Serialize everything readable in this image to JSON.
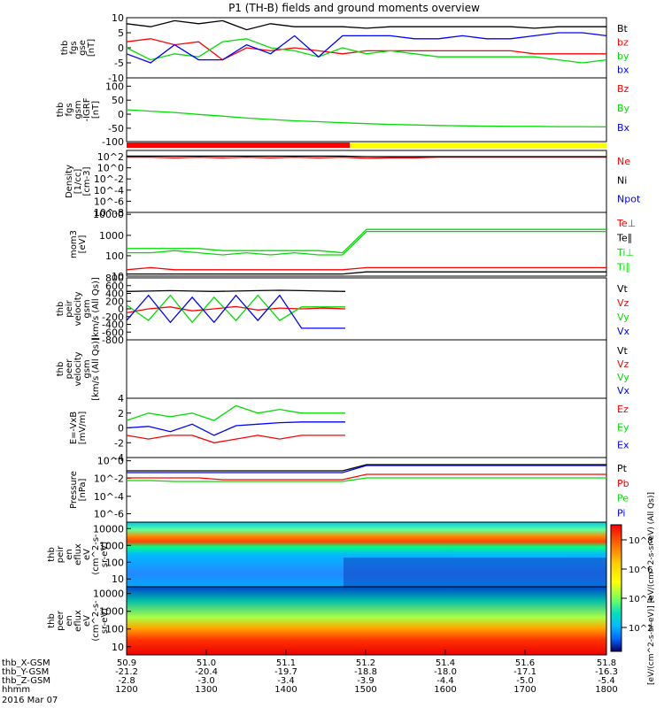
{
  "title": "P1 (TH-B) fields and ground moments overview",
  "colors": {
    "black": "#000000",
    "red": "#ff0000",
    "green": "#00dd00",
    "blue": "#0000ff",
    "yellow": "#ffff00"
  },
  "chart_data": [
    {
      "type": "line",
      "ylabel": [
        "thb",
        "fgs",
        "gse",
        "[nT]"
      ],
      "yticks": [
        "10",
        "5",
        "0",
        "-5",
        "-10"
      ],
      "ylim": [
        -10,
        10
      ],
      "legend": [
        {
          "name": "Bt",
          "color": "#000000"
        },
        {
          "name": "bz",
          "color": "#ff0000"
        },
        {
          "name": "by",
          "color": "#00dd00"
        },
        {
          "name": "bx",
          "color": "#0000ff"
        }
      ],
      "series": [
        {
          "name": "Bt",
          "values": [
            8,
            7,
            9,
            8,
            9,
            6,
            8,
            7,
            7,
            7,
            6.5,
            7,
            7,
            7,
            7,
            7,
            7,
            6.5,
            7,
            7,
            7
          ]
        },
        {
          "name": "bz",
          "values": [
            2,
            3,
            1,
            2,
            -4,
            0,
            -1,
            0,
            -1,
            -2,
            -1,
            -1,
            -1,
            -1,
            -1,
            -1,
            -1,
            -2,
            -2,
            -2,
            -2
          ]
        },
        {
          "name": "by",
          "values": [
            0,
            -4,
            -2,
            -3,
            2,
            3,
            0,
            -1,
            -3,
            0,
            -2,
            -1,
            -2,
            -3,
            -3,
            -3,
            -3,
            -3,
            -4,
            -5,
            -4
          ]
        },
        {
          "name": "bx",
          "values": [
            -2,
            -5,
            1,
            -4,
            -4,
            1,
            -2,
            4,
            -3,
            4,
            4,
            4,
            3,
            3,
            4,
            3,
            3,
            4,
            5,
            5,
            4
          ]
        }
      ]
    },
    {
      "type": "line",
      "ylabel": [
        "thb",
        "fgs",
        "gsm",
        "-IGRF",
        "[nT]"
      ],
      "yticks": [
        "100",
        "50",
        "0",
        "-50",
        "-100"
      ],
      "ylim": [
        -130,
        100
      ],
      "legend": [
        {
          "name": "Bz",
          "color": "#ff0000"
        },
        {
          "name": "By",
          "color": "#00dd00"
        },
        {
          "name": "Bx",
          "color": "#0000ff"
        }
      ],
      "series": [
        {
          "name": "By",
          "values": [
            -15,
            -20,
            -25,
            -32,
            -38,
            -45,
            -50,
            -55,
            -58,
            -62,
            -65,
            -68,
            -70,
            -72,
            -73,
            -74,
            -75,
            -75,
            -76,
            -76,
            -77
          ]
        }
      ]
    },
    {
      "type": "line",
      "ylabel": [
        "Density",
        "[1/cc]",
        "[cm-3]"
      ],
      "yticks": [
        "10^2",
        "10^0",
        "10^-2",
        "10^-4",
        "10^-6",
        "10^-8"
      ],
      "ylim_log": [
        -9,
        2
      ],
      "legend": [
        {
          "name": "Ne",
          "color": "#ff0000"
        },
        {
          "name": "Ni",
          "color": "#000000"
        },
        {
          "name": "Npot",
          "color": "#0000ff"
        }
      ],
      "series": [
        {
          "name": "Ne",
          "log_values": [
            0.8,
            0.8,
            0.7,
            0.8,
            0.7,
            0.8,
            0.7,
            0.8,
            0.7,
            0.8,
            0.6,
            0.7,
            0.7,
            0.8,
            0.8,
            0.8,
            0.8,
            0.8,
            0.8,
            0.8,
            0.8
          ]
        },
        {
          "name": "Ni",
          "log_values": [
            1,
            1,
            1,
            1,
            1,
            1,
            1,
            1,
            1,
            1,
            0.9,
            0.9,
            0.9,
            0.9,
            0.9,
            0.9,
            0.9,
            0.9,
            0.9,
            0.9,
            0.9
          ]
        }
      ]
    },
    {
      "type": "line",
      "ylabel": [
        "mom3",
        "[eV]"
      ],
      "yticks": [
        "10000",
        "1000",
        "100",
        "10"
      ],
      "ylim_log": [
        1,
        4
      ],
      "legend": [
        {
          "name": "Te⊥",
          "color": "#ff0000"
        },
        {
          "name": "Te∥",
          "color": "#000000"
        },
        {
          "name": "Ti⊥",
          "color": "#00dd00"
        },
        {
          "name": "Ti∥",
          "color": "#00dd00"
        }
      ],
      "series": [
        {
          "name": "Ti∥",
          "log_values": [
            2.1,
            2.1,
            2.2,
            2.1,
            2.0,
            2.1,
            2.0,
            2.1,
            2.0,
            2.0,
            3.1,
            3.1,
            3.1,
            3.1,
            3.1,
            3.1,
            3.1,
            3.1,
            3.1,
            3.1,
            3.1
          ]
        },
        {
          "name": "Ti⊥",
          "log_values": [
            2.3,
            2.3,
            2.3,
            2.3,
            2.2,
            2.2,
            2.2,
            2.2,
            2.2,
            2.1,
            3.2,
            3.2,
            3.2,
            3.2,
            3.2,
            3.2,
            3.2,
            3.2,
            3.2,
            3.2,
            3.2
          ]
        },
        {
          "name": "Te⊥",
          "log_values": [
            1.3,
            1.4,
            1.3,
            1.3,
            1.3,
            1.3,
            1.3,
            1.3,
            1.3,
            1.3,
            1.4,
            1.4,
            1.4,
            1.4,
            1.4,
            1.4,
            1.4,
            1.4,
            1.4,
            1.4,
            1.4
          ]
        },
        {
          "name": "Te∥",
          "log_values": [
            1.1,
            1.1,
            1.1,
            1.1,
            1.1,
            1.1,
            1.1,
            1.1,
            1.1,
            1.1,
            1.2,
            1.2,
            1.2,
            1.2,
            1.2,
            1.2,
            1.2,
            1.2,
            1.2,
            1.2,
            1.2
          ]
        }
      ]
    },
    {
      "type": "line",
      "ylabel": [
        "thb",
        "peir",
        "velocity",
        "gsm",
        "[km/s (All Qs)]"
      ],
      "yticks": [
        "800",
        "600",
        "400",
        "200",
        "0",
        "-200",
        "-400",
        "-600",
        "-800"
      ],
      "ylim": [
        -800,
        800
      ],
      "legend": [
        {
          "name": "Vt",
          "color": "#000000"
        },
        {
          "name": "Vz",
          "color": "#ff0000"
        },
        {
          "name": "Vy",
          "color": "#00dd00"
        },
        {
          "name": "Vx",
          "color": "#0000ff"
        }
      ],
      "series": [
        {
          "name": "Vt",
          "values": [
            450,
            460,
            470,
            460,
            450,
            460,
            470,
            480,
            470,
            460,
            450
          ]
        },
        {
          "name": "Vz",
          "values": [
            -100,
            0,
            50,
            -50,
            0,
            60,
            -30,
            20,
            0,
            20,
            0
          ]
        },
        {
          "name": "Vy",
          "values": [
            100,
            -300,
            350,
            -350,
            300,
            -300,
            350,
            -300,
            50,
            50,
            50
          ]
        },
        {
          "name": "Vx",
          "values": [
            -300,
            350,
            -350,
            300,
            -350,
            350,
            -300,
            350,
            -500,
            -500,
            -500
          ]
        }
      ]
    },
    {
      "type": "line",
      "ylabel": [
        "thb",
        "peer",
        "velocity",
        "gsm",
        "[km/s (All Qs)]"
      ],
      "yticks": [],
      "legend": [
        {
          "name": "Vt",
          "color": "#000000"
        },
        {
          "name": "Vz",
          "color": "#ff0000"
        },
        {
          "name": "Vy",
          "color": "#00dd00"
        },
        {
          "name": "Vx",
          "color": "#0000ff"
        }
      ],
      "series": []
    },
    {
      "type": "line",
      "ylabel": [
        "E=-VxB",
        "[mV/m]"
      ],
      "yticks": [
        "4",
        "2",
        "0",
        "-2",
        "-4"
      ],
      "ylim": [
        -4,
        4
      ],
      "legend": [
        {
          "name": "Ez",
          "color": "#ff0000"
        },
        {
          "name": "Ey",
          "color": "#00dd00"
        },
        {
          "name": "Ex",
          "color": "#0000ff"
        }
      ],
      "series": [
        {
          "name": "Ey",
          "values": [
            1,
            2,
            1.5,
            2,
            1,
            3,
            2,
            2.5,
            2,
            2,
            2
          ]
        },
        {
          "name": "Ez",
          "values": [
            -1,
            -1.5,
            -1,
            -1,
            -2,
            -1.5,
            -1,
            -1.5,
            -1,
            -1,
            -1
          ]
        },
        {
          "name": "Ex",
          "values": [
            0,
            0.2,
            -0.5,
            0.5,
            -1,
            0.3,
            0.5,
            0.7,
            0.8,
            0.8,
            0.8
          ]
        }
      ]
    },
    {
      "type": "line",
      "ylabel": [
        "Pressure",
        "[nPa]"
      ],
      "yticks": [
        "10^0",
        "10^-2",
        "10^-4",
        "10^-6"
      ],
      "ylim_log": [
        -7,
        0.3
      ],
      "legend": [
        {
          "name": "Pt",
          "color": "#000000"
        },
        {
          "name": "Pb",
          "color": "#ff0000"
        },
        {
          "name": "Pe",
          "color": "#00dd00"
        },
        {
          "name": "Pi",
          "color": "#0000ff"
        }
      ],
      "series": [
        {
          "name": "Pt",
          "log_values": [
            -1.2,
            -1.2,
            -1.2,
            -1.2,
            -1.2,
            -1.2,
            -1.2,
            -1.2,
            -1.2,
            -1.2,
            -0.5,
            -0.5,
            -0.5,
            -0.5,
            -0.5,
            -0.5,
            -0.5,
            -0.5,
            -0.5,
            -0.5,
            -0.5
          ]
        },
        {
          "name": "Pi",
          "log_values": [
            -1.4,
            -1.4,
            -1.4,
            -1.4,
            -1.4,
            -1.4,
            -1.4,
            -1.4,
            -1.4,
            -1.4,
            -0.6,
            -0.6,
            -0.6,
            -0.6,
            -0.6,
            -0.6,
            -0.6,
            -0.6,
            -0.6,
            -0.6,
            -0.6
          ]
        },
        {
          "name": "Pb",
          "log_values": [
            -2,
            -2,
            -2,
            -2,
            -2.2,
            -2.2,
            -2.2,
            -2.2,
            -2.2,
            -2.2,
            -1.6,
            -1.6,
            -1.6,
            -1.6,
            -1.6,
            -1.6,
            -1.6,
            -1.6,
            -1.6,
            -1.6,
            -1.6
          ]
        },
        {
          "name": "Pe",
          "log_values": [
            -2.3,
            -2.3,
            -2.4,
            -2.4,
            -2.4,
            -2.4,
            -2.4,
            -2.4,
            -2.4,
            -2.4,
            -2.0,
            -2.0,
            -2.0,
            -2.0,
            -2.0,
            -2.0,
            -2.0,
            -2.0,
            -2.0,
            -2.0,
            -2.0
          ]
        }
      ]
    },
    {
      "type": "heatmap",
      "ylabel": [
        "thb",
        "peir",
        "en",
        "eflux",
        "eV",
        "(cm^2-s-",
        "sr-eV)"
      ],
      "yticks": [
        "10000",
        "1000",
        "100",
        "10"
      ]
    },
    {
      "type": "heatmap",
      "ylabel": [
        "thb",
        "peer",
        "en",
        "eflux",
        "eV",
        "(cm^2-s-",
        "sr-eV)"
      ],
      "yticks": [
        "10000",
        "1000",
        "100",
        "10"
      ]
    }
  ],
  "colorbar": {
    "label": "[eV/(cm^2-s-sr-eV)] [eV/(cm^2-s-sr-eV) (All Qs)]",
    "ticks": [
      "10^8",
      "10^6",
      "10^4",
      "10^2"
    ]
  },
  "time_axis": {
    "rows": [
      {
        "label": "thb_X-GSM",
        "values": [
          "50.9",
          "51.0",
          "51.1",
          "51.2",
          "51.4",
          "51.6",
          "51.8"
        ]
      },
      {
        "label": "thb_Y-GSM",
        "values": [
          "-21.2",
          "-20.4",
          "-19.7",
          "-18.8",
          "-18.0",
          "-17.1",
          "-16.3"
        ]
      },
      {
        "label": "thb_Z-GSM",
        "values": [
          "-2.8",
          "-3.0",
          "-3.4",
          "-3.9",
          "-4.4",
          "-5.0",
          "-5.4"
        ]
      },
      {
        "label": "hhmm",
        "values": [
          "1200",
          "1300",
          "1400",
          "1500",
          "1600",
          "1700",
          "1800"
        ]
      }
    ],
    "date": "2016 Mar 07"
  }
}
